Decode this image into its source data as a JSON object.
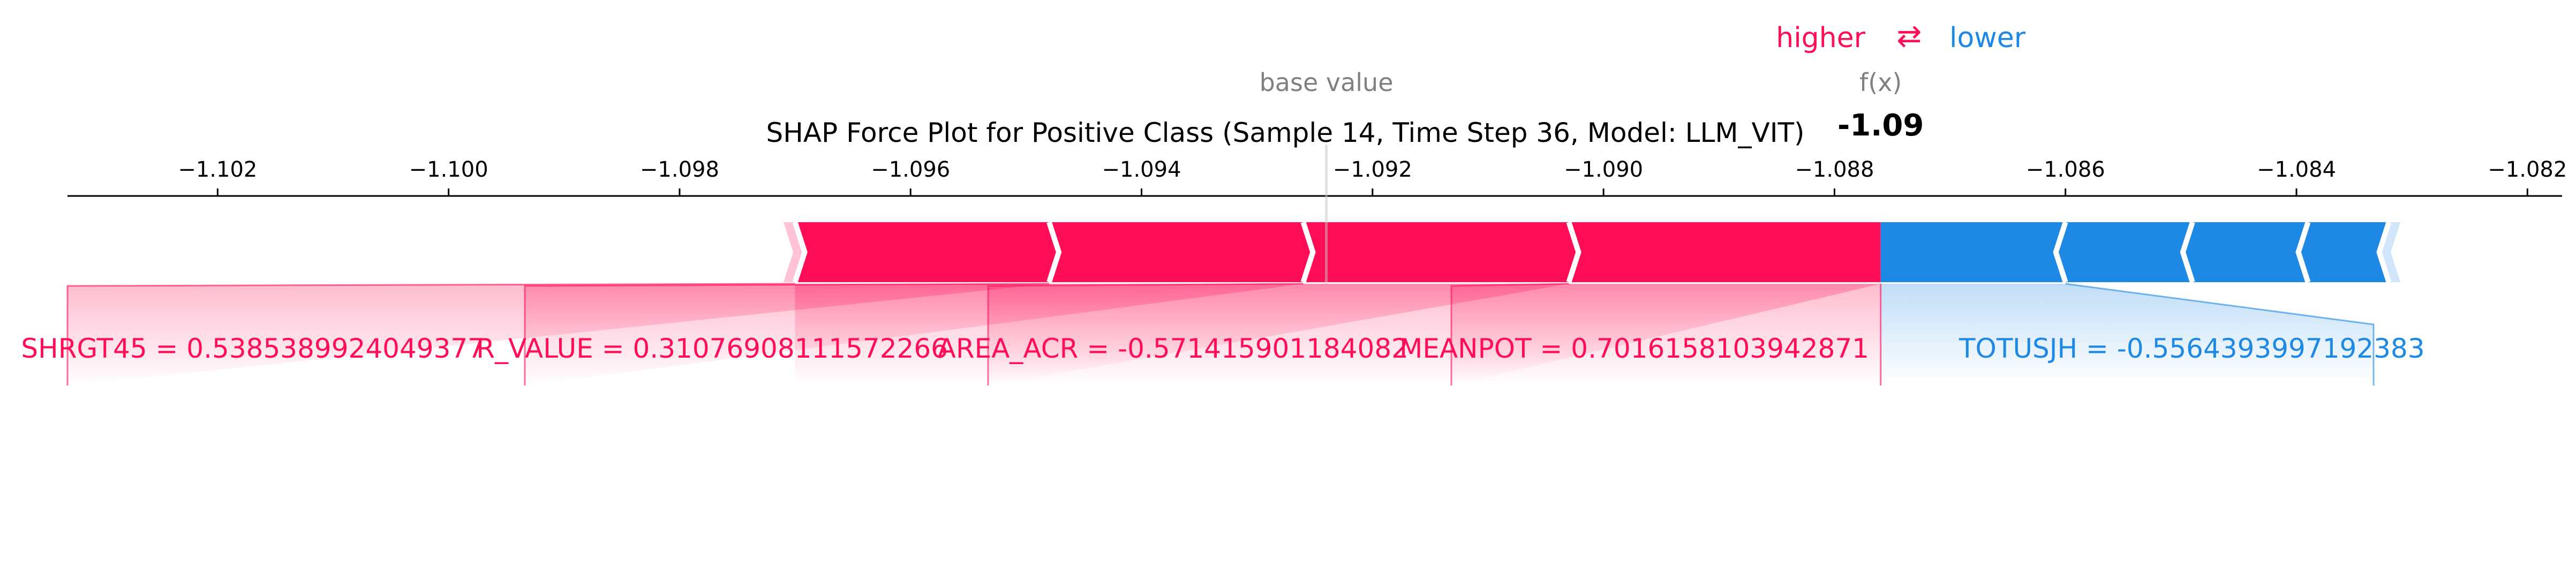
{
  "chart_data": {
    "type": "force",
    "title": "SHAP Force Plot for Positive Class (Sample 14, Time Step 36, Model: LLM_VIT)",
    "legend": {
      "higher": "higher",
      "lower": "lower",
      "arrow": "⇄"
    },
    "base_value_label": "base value",
    "fx_label": "f(x)",
    "fx_value_text": "-1.09",
    "base_value": -1.0924,
    "fx_value": -1.0876,
    "xlim": [
      -1.1033,
      -1.0817
    ],
    "ticks": [
      -1.102,
      -1.1,
      -1.098,
      -1.096,
      -1.094,
      -1.092,
      -1.09,
      -1.088,
      -1.086,
      -1.084,
      -1.082
    ],
    "tick_labels": [
      "−1.102",
      "−1.100",
      "−1.098",
      "−1.096",
      "−1.094",
      "−1.092",
      "−1.090",
      "−1.088",
      "−1.086",
      "−1.084",
      "−1.082"
    ],
    "positive": [
      {
        "label": "MEANPOT = 0.7016158103942871",
        "start": -1.0876,
        "end": -1.0903
      },
      {
        "label": "AREA_ACR = -0.571415901184082",
        "start": -1.0903,
        "end": -1.0926
      },
      {
        "label": "R_VALUE = 0.31076908111572266",
        "start": -1.0926,
        "end": -1.0948
      },
      {
        "label": "SHRGT45 = 0.5385389924049377",
        "start": -1.0948,
        "end": -1.097
      },
      {
        "label": "",
        "start": -1.097,
        "end": -1.0971
      }
    ],
    "negative": [
      {
        "label": "TOTUSJH = -0.5564393997192383",
        "start": -1.0876,
        "end": -1.086
      },
      {
        "label": "",
        "start": -1.086,
        "end": -1.0849
      },
      {
        "label": "",
        "start": -1.0849,
        "end": -1.0839
      },
      {
        "label": "",
        "start": -1.0839,
        "end": -1.0832
      },
      {
        "label": "",
        "start": -1.0832,
        "end": -1.0831
      }
    ],
    "colors": {
      "positive": "#ff0d57",
      "negative": "#1e88e5",
      "positive_light": "#ffc3d5",
      "negative_light": "#d1e6fa",
      "grey": "#808080"
    }
  }
}
